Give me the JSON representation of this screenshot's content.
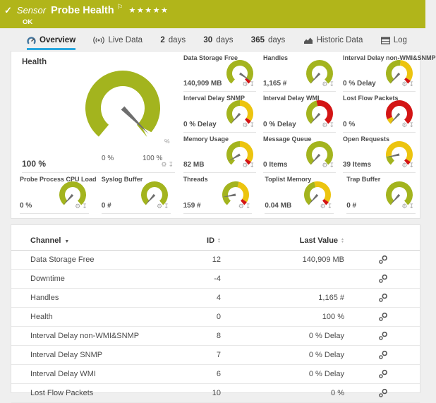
{
  "header": {
    "check_icon": "✓",
    "kind": "Sensor",
    "title": "Probe Health",
    "flag_icon": "⚐",
    "stars": "★★★★★",
    "status": "OK"
  },
  "tabs": [
    {
      "id": "overview",
      "icon": "overview",
      "label": "Overview",
      "active": true
    },
    {
      "id": "live-data",
      "icon": "live",
      "label": "Live Data",
      "active": false
    },
    {
      "id": "2-days",
      "strong": "2",
      "label": "days",
      "active": false
    },
    {
      "id": "30-days",
      "strong": "30",
      "label": "days",
      "active": false
    },
    {
      "id": "365-days",
      "strong": "365",
      "label": "days",
      "active": false
    },
    {
      "id": "historic-data",
      "icon": "historic",
      "label": "Historic Data",
      "active": false
    },
    {
      "id": "log",
      "icon": "log",
      "label": "Log",
      "active": false
    }
  ],
  "colors": {
    "header_green": "#b1b51a",
    "gauge_green": "#a3b41e",
    "gauge_yellow": "#ecc40f",
    "gauge_red": "#d31515",
    "needle_gray": "#6e6e6e",
    "active_tab_blue": "#2aa7de"
  },
  "gauge_actions": {
    "gear_icon": "⚙",
    "pin_icon": "↧"
  },
  "health_gauge": {
    "title": "Health",
    "value": "100 %",
    "scale_min": "0 %",
    "scale_max": "100 %",
    "unit_mark": "%",
    "segments": [
      {
        "color": "green",
        "frac": 1
      }
    ],
    "needle_deg": -45
  },
  "small_gauges": {
    "top": [
      {
        "title": "Data Storage Free",
        "value": "140,909 MB",
        "segments": [
          {
            "color": "green",
            "frac": 0.95
          },
          {
            "color": "red",
            "frac": 0.05
          }
        ],
        "needle_deg": -35
      },
      {
        "title": "Handles",
        "value": "1,165 #",
        "segments": [
          {
            "color": "green",
            "frac": 1
          }
        ],
        "needle_deg": 228
      },
      {
        "title": "Interval Delay non-WMI&SNMP",
        "value": "0 % Delay",
        "segments": [
          {
            "color": "green",
            "frac": 0.52
          },
          {
            "color": "yellow",
            "frac": 0.42
          },
          {
            "color": "red",
            "frac": 0.06
          }
        ],
        "needle_deg": 228
      },
      {
        "title": "Interval Delay SNMP",
        "value": "0 % Delay",
        "segments": [
          {
            "color": "green",
            "frac": 0.5
          },
          {
            "color": "yellow",
            "frac": 0.44
          },
          {
            "color": "red",
            "frac": 0.06
          }
        ],
        "needle_deg": 228
      },
      {
        "title": "Interval Delay WMI",
        "value": "0 % Delay",
        "segments": [
          {
            "color": "green",
            "frac": 0.45
          },
          {
            "color": "red",
            "frac": 0.55
          }
        ],
        "needle_deg": 228
      },
      {
        "title": "Lost Flow Packets",
        "value": "0 %",
        "segments": [
          {
            "color": "yellow",
            "frac": 0.09
          },
          {
            "color": "red",
            "frac": 0.91
          }
        ],
        "needle_deg": 228
      },
      {
        "title": "Memory Usage",
        "value": "82 MB",
        "segments": [
          {
            "color": "green",
            "frac": 0.5
          },
          {
            "color": "yellow",
            "frac": 0.44
          },
          {
            "color": "red",
            "frac": 0.06
          }
        ],
        "needle_deg": 210
      },
      {
        "title": "Message Queue",
        "value": "0 Items",
        "segments": [
          {
            "color": "green",
            "frac": 1
          }
        ],
        "needle_deg": 228
      },
      {
        "title": "Open Requests",
        "value": "39 Items",
        "segments": [
          {
            "color": "green",
            "frac": 0.15
          },
          {
            "color": "yellow",
            "frac": 0.79
          },
          {
            "color": "red",
            "frac": 0.06
          }
        ],
        "needle_deg": 192
      }
    ],
    "bottom": [
      {
        "title": "Probe Process CPU Load",
        "value": "0 %",
        "segments": [
          {
            "color": "green",
            "frac": 1
          }
        ],
        "needle_deg": 228
      },
      {
        "title": "Syslog Buffer",
        "value": "0 #",
        "segments": [
          {
            "color": "green",
            "frac": 1
          }
        ],
        "needle_deg": 228
      },
      {
        "title": "Threads",
        "value": "159 #",
        "segments": [
          {
            "color": "green",
            "frac": 0.55
          },
          {
            "color": "yellow",
            "frac": 0.39
          },
          {
            "color": "red",
            "frac": 0.06
          }
        ],
        "needle_deg": 190
      },
      {
        "title": "Toplist Memory",
        "value": "0.04 MB",
        "segments": [
          {
            "color": "green",
            "frac": 0.45
          },
          {
            "color": "yellow",
            "frac": 0.49
          },
          {
            "color": "red",
            "frac": 0.06
          }
        ],
        "needle_deg": 228
      },
      {
        "title": "Trap Buffer",
        "value": "0 #",
        "segments": [
          {
            "color": "green",
            "frac": 1
          }
        ],
        "needle_deg": 228
      }
    ]
  },
  "table": {
    "columns": [
      {
        "label": "Channel",
        "sort": "active-desc"
      },
      {
        "label": "ID",
        "sort": "sortable"
      },
      {
        "label": "Last Value",
        "sort": "sortable"
      }
    ],
    "rows": [
      {
        "channel": "Data Storage Free",
        "id": "12",
        "last_value": "140,909 MB"
      },
      {
        "channel": "Downtime",
        "id": "-4",
        "last_value": ""
      },
      {
        "channel": "Handles",
        "id": "4",
        "last_value": "1,165 #"
      },
      {
        "channel": "Health",
        "id": "0",
        "last_value": "100 %"
      },
      {
        "channel": "Interval Delay non-WMI&SNMP",
        "id": "8",
        "last_value": "0 % Delay"
      },
      {
        "channel": "Interval Delay SNMP",
        "id": "7",
        "last_value": "0 % Delay"
      },
      {
        "channel": "Interval Delay WMI",
        "id": "6",
        "last_value": "0 % Delay"
      },
      {
        "channel": "Lost Flow Packets",
        "id": "10",
        "last_value": "0 %"
      }
    ]
  }
}
